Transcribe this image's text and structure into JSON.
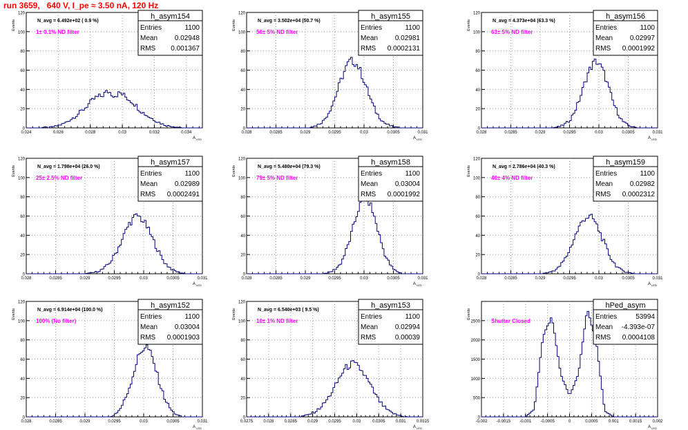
{
  "canvas_title": "run 3659,   640 V, I_pe ≈ 3.50 nA, 120 Hz",
  "colors": {
    "histogram": "#00007a",
    "annotation": "#ff00ff",
    "title": "#ff0000"
  },
  "ylabel": "Events",
  "xlabel": "A_{LED}",
  "stat_labels": {
    "entries": "Entries",
    "mean": "Mean",
    "rms": "RMS"
  },
  "chart_data": [
    {
      "type": "histogram",
      "name": "h_asym154",
      "navg": "N_avg = 6.492e+02 ( 0.9 %)",
      "annotation": "1± 0.1% ND filter",
      "entries": "1100",
      "mean": "0.02948",
      "rms": "0.001367",
      "xlim": [
        0.024,
        0.035
      ],
      "ylim": [
        0,
        120
      ],
      "xticks": [
        "0.024",
        "0.026",
        "0.028",
        "0.03",
        "0.032",
        "0.034"
      ],
      "xtick_values": [
        0.024,
        0.026,
        0.028,
        0.03,
        0.032,
        0.034
      ],
      "yticks": [
        0,
        20,
        40,
        60,
        80,
        100,
        120
      ],
      "center": 0.02948,
      "sigma": 0.00137,
      "peak": 38,
      "x": [
        0.0251,
        0.0255,
        0.0259,
        0.0263,
        0.0267,
        0.0271,
        0.0275,
        0.0279,
        0.0283,
        0.0287,
        0.0291,
        0.0295,
        0.0299,
        0.0303,
        0.0307,
        0.0311,
        0.0315,
        0.0319,
        0.0323,
        0.0327,
        0.0331,
        0.0335
      ],
      "y": [
        1,
        1,
        3,
        6,
        12,
        18,
        24,
        31,
        37,
        34,
        40,
        28,
        36,
        30,
        27,
        18,
        14,
        11,
        7,
        3,
        2,
        1
      ]
    },
    {
      "type": "histogram",
      "name": "h_asym155",
      "navg": "N_avg = 3.502e+04 (50.7 %)",
      "annotation": "50± 5% ND filter",
      "entries": "1100",
      "mean": "0.02981",
      "rms": "0.0002131",
      "xlim": [
        0.028,
        0.031
      ],
      "ylim": [
        0,
        120
      ],
      "xticks": [
        "0.028",
        "0.0285",
        "0.029",
        "0.0295",
        "0.03",
        "0.0305",
        "0.031"
      ],
      "xtick_values": [
        0.028,
        0.0285,
        0.029,
        0.0295,
        0.03,
        0.0305,
        0.031
      ],
      "yticks": [
        0,
        20,
        40,
        60,
        80,
        100,
        120
      ],
      "center": 0.02981,
      "sigma": 0.000213,
      "peak": 70,
      "x": [
        0.02915,
        0.0293,
        0.02945,
        0.0296,
        0.02975,
        0.0299,
        0.03005,
        0.0302,
        0.03035,
        0.0305
      ],
      "y": [
        3,
        10,
        30,
        55,
        71,
        64,
        45,
        22,
        8,
        2
      ]
    },
    {
      "type": "histogram",
      "name": "h_asym156",
      "navg": "N_avg = 4.373e+04 (63.3 %)",
      "annotation": "63± 5% ND filter",
      "entries": "1100",
      "mean": "0.02997",
      "rms": "0.0001992",
      "xlim": [
        0.028,
        0.031
      ],
      "ylim": [
        0,
        120
      ],
      "xticks": [
        "0.028",
        "0.0285",
        "0.029",
        "0.0295",
        "0.03",
        "0.0305",
        "0.031"
      ],
      "xtick_values": [
        0.028,
        0.0285,
        0.029,
        0.0295,
        0.03,
        0.0305,
        0.031
      ],
      "yticks": [
        0,
        20,
        40,
        60,
        80,
        100,
        120
      ],
      "center": 0.02997,
      "sigma": 0.000199,
      "peak": 70,
      "x": [
        0.02935,
        0.0295,
        0.02965,
        0.0298,
        0.02995,
        0.0301,
        0.03025,
        0.0304,
        0.03055
      ],
      "y": [
        3,
        12,
        35,
        62,
        69,
        52,
        25,
        8,
        2
      ]
    },
    {
      "type": "histogram",
      "name": "h_asym157",
      "navg": "N_avg = 1.798e+04 (26.0 %)",
      "annotation": "25± 2.5% ND filter",
      "entries": "1100",
      "mean": "0.02989",
      "rms": "0.0002491",
      "xlim": [
        0.028,
        0.031
      ],
      "ylim": [
        0,
        120
      ],
      "xticks": [
        "0.028",
        "0.0285",
        "0.029",
        "0.0295",
        "0.03",
        "0.0305",
        "0.031"
      ],
      "xtick_values": [
        0.028,
        0.0285,
        0.029,
        0.0295,
        0.03,
        0.0305,
        0.031
      ],
      "yticks": [
        0,
        20,
        40,
        60,
        80,
        100,
        120
      ],
      "center": 0.02989,
      "sigma": 0.000249,
      "peak": 60,
      "x": [
        0.02915,
        0.0293,
        0.02945,
        0.0296,
        0.02975,
        0.0299,
        0.03005,
        0.0302,
        0.03035,
        0.0305,
        0.03065
      ],
      "y": [
        2,
        6,
        15,
        32,
        52,
        61,
        50,
        33,
        14,
        5,
        1
      ]
    },
    {
      "type": "histogram",
      "name": "h_asym158",
      "navg": "N_avg = 5.480e+04 (79.3 %)",
      "annotation": "79± 5% ND filter",
      "entries": "1100",
      "mean": "0.03004",
      "rms": "0.0001992",
      "xlim": [
        0.028,
        0.031
      ],
      "ylim": [
        0,
        120
      ],
      "xticks": [
        "0.028",
        "0.0285",
        "0.029",
        "0.0295",
        "0.03",
        "0.0305",
        "0.031"
      ],
      "xtick_values": [
        0.028,
        0.0285,
        0.029,
        0.0295,
        0.03,
        0.0305,
        0.031
      ],
      "yticks": [
        0,
        20,
        40,
        60,
        80,
        100,
        120
      ],
      "center": 0.03004,
      "sigma": 0.000199,
      "peak": 80,
      "x": [
        0.02945,
        0.0296,
        0.02975,
        0.0299,
        0.03005,
        0.0302,
        0.03035,
        0.0305
      ],
      "y": [
        4,
        15,
        42,
        72,
        78,
        48,
        18,
        4
      ]
    },
    {
      "type": "histogram",
      "name": "h_asym159",
      "navg": "N_avg = 2.786e+04 (40.3 %)",
      "annotation": "40± 4% ND filter",
      "entries": "1100",
      "mean": "0.02982",
      "rms": "0.0002312",
      "xlim": [
        0.028,
        0.031
      ],
      "ylim": [
        0,
        120
      ],
      "xticks": [
        "0.028",
        "0.0285",
        "0.029",
        "0.0295",
        "0.03",
        "0.0305",
        "0.031"
      ],
      "xtick_values": [
        0.028,
        0.0285,
        0.029,
        0.0295,
        0.03,
        0.0305,
        0.031
      ],
      "yticks": [
        0,
        20,
        40,
        60,
        80,
        100,
        120
      ],
      "center": 0.02982,
      "sigma": 0.000231,
      "peak": 60,
      "x": [
        0.02915,
        0.0293,
        0.02945,
        0.0296,
        0.02975,
        0.0299,
        0.03005,
        0.0302,
        0.03035,
        0.0305
      ],
      "y": [
        2,
        7,
        20,
        42,
        58,
        58,
        40,
        18,
        6,
        2
      ]
    },
    {
      "type": "histogram",
      "name": "h_asym152",
      "navg": "N_avg = 6.914e+04 (100.0 %)",
      "annotation": "100% (No filter)",
      "entries": "1100",
      "mean": "0.03004",
      "rms": "0.0001903",
      "xlim": [
        0.028,
        0.031
      ],
      "ylim": [
        0,
        120
      ],
      "xticks": [
        "0.028",
        "0.0285",
        "0.029",
        "0.0295",
        "0.03",
        "0.0305",
        "0.031"
      ],
      "xtick_values": [
        0.028,
        0.0285,
        0.029,
        0.0295,
        0.03,
        0.0305,
        0.031
      ],
      "yticks": [
        0,
        20,
        40,
        60,
        80,
        100,
        120
      ],
      "center": 0.03004,
      "sigma": 0.00019,
      "peak": 74,
      "x": [
        0.0296,
        0.02975,
        0.0299,
        0.03005,
        0.0302,
        0.03035,
        0.0305
      ],
      "y": [
        12,
        38,
        66,
        73,
        48,
        22,
        6
      ]
    },
    {
      "type": "histogram",
      "name": "h_asym153",
      "navg": "N_avg = 6.540e+03 ( 9.5 %)",
      "annotation": "10± 1% ND filter",
      "entries": "1100",
      "mean": "0.02994",
      "rms": "0.00039",
      "xlim": [
        0.0275,
        0.0315
      ],
      "ylim": [
        0,
        120
      ],
      "xticks": [
        "0.0275",
        "0.028",
        "0.0285",
        "0.029",
        "0.0295",
        "0.03",
        "0.0305",
        "0.031",
        "0.0315"
      ],
      "xtick_values": [
        0.0275,
        0.028,
        0.0285,
        0.029,
        0.0295,
        0.03,
        0.0305,
        0.031,
        0.0315
      ],
      "yticks": [
        0,
        20,
        40,
        60,
        80,
        100,
        120
      ],
      "center": 0.02994,
      "sigma": 0.00039,
      "peak": 56,
      "x": [
        0.0289,
        0.0291,
        0.0293,
        0.0295,
        0.0297,
        0.0299,
        0.0301,
        0.0303,
        0.0305,
        0.0307,
        0.0309
      ],
      "y": [
        3,
        8,
        18,
        32,
        50,
        55,
        45,
        30,
        14,
        5,
        2
      ]
    },
    {
      "type": "histogram",
      "name": "hPed_asym",
      "navg": "",
      "annotation": "Shutter Closed",
      "entries": "53994",
      "mean": "-4.393e-07",
      "rms": "0.0004108",
      "xlim": [
        -0.002,
        0.002
      ],
      "ylim": [
        0,
        3000
      ],
      "xticks": [
        "-0.002",
        "-0.0015",
        "-0.001",
        "-0.0005",
        "0",
        "0.0005",
        "0.001",
        "0.0015",
        "0.002"
      ],
      "xtick_values": [
        -0.002,
        -0.0015,
        -0.001,
        -0.0005,
        0,
        0.0005,
        0.001,
        0.0015,
        0.002
      ],
      "yticks": [
        0,
        500,
        1000,
        1500,
        2000,
        2500
      ],
      "bimodal": true,
      "x": [
        -0.0008,
        -0.0006,
        -0.0004,
        -0.0002,
        0,
        0.0002,
        0.0004,
        0.0006,
        0.0008
      ],
      "y": [
        200,
        2100,
        2600,
        1100,
        550,
        1100,
        2800,
        2000,
        150
      ]
    }
  ]
}
